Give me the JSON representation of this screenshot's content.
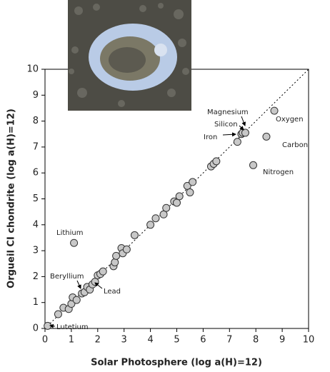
{
  "chart_data": {
    "type": "scatter",
    "x_label": "Solar Photosphere (log a(H)=12)",
    "y_label": "Orgueil CI chondrite (log a(H)=12)",
    "xlim": [
      0,
      10
    ],
    "ylim": [
      0,
      10
    ],
    "xticks": [
      0,
      1,
      2,
      3,
      4,
      5,
      6,
      7,
      8,
      9,
      10
    ],
    "yticks": [
      0,
      1,
      2,
      3,
      4,
      5,
      6,
      7,
      8,
      9,
      10
    ],
    "color": "#c8c8c8",
    "x": [
      0.1,
      0.5,
      0.7,
      0.9,
      1.0,
      1.05,
      1.2,
      1.4,
      1.5,
      1.6,
      1.7,
      1.8,
      1.9,
      2.0,
      2.1,
      2.2,
      1.1,
      2.6,
      2.65,
      2.7,
      2.9,
      2.95,
      3.1,
      3.4,
      4.0,
      4.2,
      4.5,
      4.6,
      4.9,
      5.0,
      5.1,
      5.4,
      5.5,
      5.6,
      6.3,
      6.4,
      6.5,
      7.3,
      7.45,
      7.5,
      7.6,
      8.4,
      8.7,
      7.9
    ],
    "y": [
      0.1,
      0.55,
      0.8,
      0.75,
      0.95,
      1.2,
      1.1,
      1.35,
      1.4,
      1.6,
      1.5,
      1.7,
      1.8,
      2.05,
      2.1,
      2.2,
      3.3,
      2.4,
      2.55,
      2.8,
      3.1,
      2.9,
      3.05,
      3.6,
      4.0,
      4.25,
      4.4,
      4.65,
      4.9,
      4.85,
      5.1,
      5.5,
      5.25,
      5.65,
      6.25,
      6.35,
      6.45,
      7.2,
      7.5,
      7.55,
      7.55,
      7.4,
      8.4,
      6.3
    ],
    "annotations": [
      "Oxygen",
      "Carbon",
      "Nitrogen",
      "Magnesium",
      "Silicon",
      "Iron",
      "Lithium",
      "Beryllium",
      "Lead",
      "Lutetium"
    ]
  }
}
